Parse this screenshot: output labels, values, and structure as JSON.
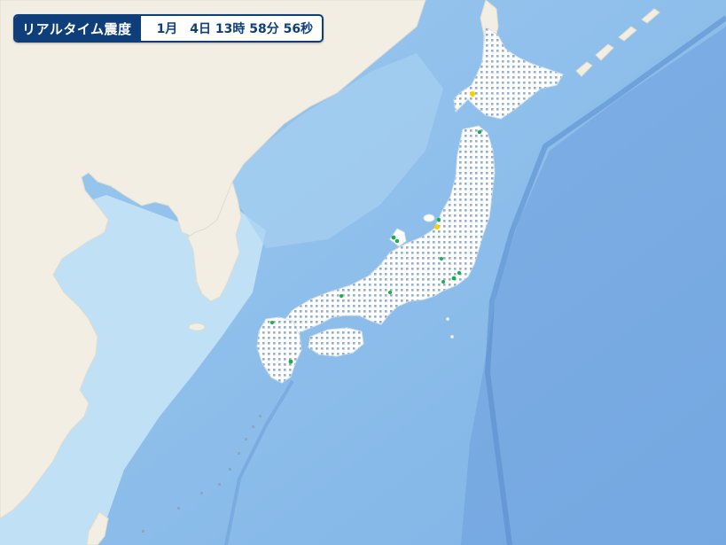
{
  "header": {
    "title": "リアルタイム震度",
    "timestamp": "1月　4日 13時 58分 56秒"
  },
  "map": {
    "region": "Japan",
    "colors": {
      "deep_sea": "#6a9fdc",
      "sea": "#8dbde9",
      "shallow_sea": "#bfe0f5",
      "foreign_land": "#f2eee3",
      "japan_land": "#ffffff",
      "station_none": "#8aa7c2",
      "station_green": "#18b04a",
      "station_yellow": "#f5d100"
    },
    "stations": [
      {
        "level": "yellow",
        "note": "Hokkaido north"
      },
      {
        "level": "yellow",
        "note": "Niigata"
      },
      {
        "level": "green",
        "note": "Tohoku north"
      },
      {
        "level": "green",
        "note": "Noto"
      },
      {
        "level": "green",
        "note": "Kanto"
      },
      {
        "level": "green",
        "note": "Kyushu"
      }
    ]
  }
}
